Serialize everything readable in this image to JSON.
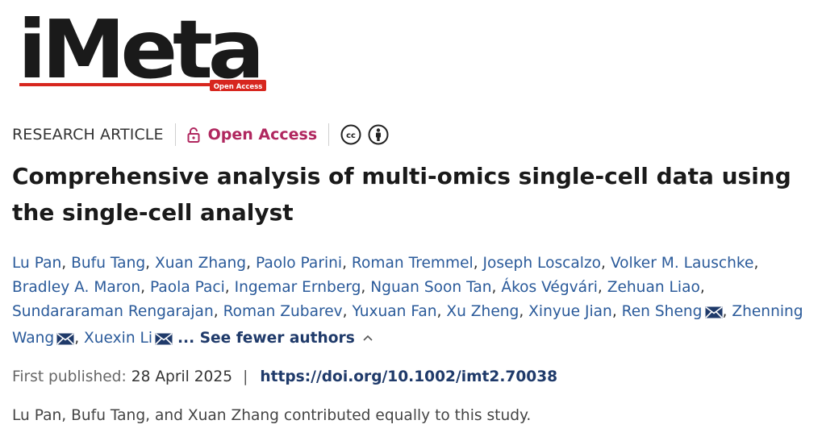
{
  "logo": {
    "text": "iMeta",
    "badge": "Open Access",
    "icon": "imeta-logo"
  },
  "meta": {
    "article_type": "RESEARCH ARTICLE",
    "access_label": "Open Access",
    "access_icon": "unlock-icon",
    "license_icons": [
      "cc-icon",
      "by-attribution-icon"
    ]
  },
  "title": "Comprehensive analysis of multi-omics single-cell data using the single-cell analyst",
  "authors": [
    {
      "name": "Lu Pan",
      "email": false
    },
    {
      "name": "Bufu Tang",
      "email": false
    },
    {
      "name": "Xuan Zhang",
      "email": false
    },
    {
      "name": "Paolo Parini",
      "email": false
    },
    {
      "name": "Roman Tremmel",
      "email": false
    },
    {
      "name": "Joseph Loscalzo",
      "email": false
    },
    {
      "name": "Volker M. Lauschke",
      "email": false
    },
    {
      "name": "Bradley A. Maron",
      "email": false
    },
    {
      "name": "Paola Paci",
      "email": false
    },
    {
      "name": "Ingemar Ernberg",
      "email": false
    },
    {
      "name": "Nguan Soon Tan",
      "email": false
    },
    {
      "name": "Ákos Végvári",
      "email": false
    },
    {
      "name": "Zehuan Liao",
      "email": false
    },
    {
      "name": "Sundararaman Rengarajan",
      "email": false
    },
    {
      "name": "Roman Zubarev",
      "email": false
    },
    {
      "name": "Yuxuan Fan",
      "email": false
    },
    {
      "name": "Xu Zheng",
      "email": false
    },
    {
      "name": "Xinyue Jian",
      "email": false
    },
    {
      "name": "Ren Sheng",
      "email": true
    },
    {
      "name": "Zhenning Wang",
      "email": true
    },
    {
      "name": "Xuexin Li",
      "email": true
    }
  ],
  "authors_toggle": "... See fewer authors",
  "publication": {
    "first_published_label": "First published:",
    "first_published_date": "28 April 2025",
    "separator": "|",
    "doi": "https://doi.org/10.1002/imt2.70038"
  },
  "note": "Lu Pan, Bufu Tang, and Xuan Zhang contributed equally to this study.",
  "colors": {
    "brand_red": "#d7261e",
    "open_access": "#b0275f",
    "link": "#2a5a9a",
    "doi": "#1f3a6a"
  }
}
